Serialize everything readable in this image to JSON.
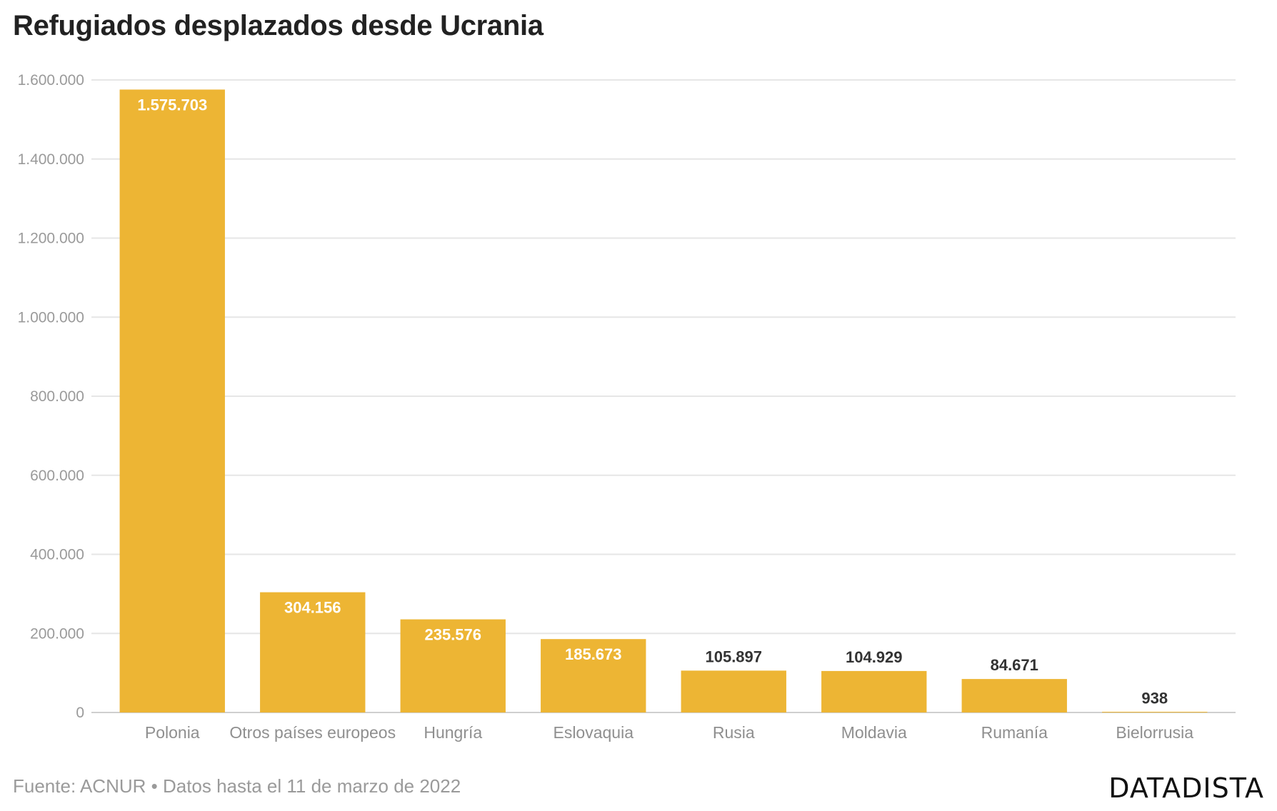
{
  "title": "Refugiados desplazados desde Ucrania",
  "footer": {
    "source": "Fuente: ACNUR • Datos hasta el 11 de marzo de 2022"
  },
  "brand": "DATADISTA",
  "colors": {
    "bar": "#EDB534",
    "grid": "#e6e6e6",
    "axis": "#cfcfcf"
  },
  "chart_data": {
    "type": "bar",
    "title": "Refugiados desplazados desde Ucrania",
    "xlabel": "",
    "ylabel": "",
    "categories": [
      "Polonia",
      "Otros países europeos",
      "Hungría",
      "Eslovaquia",
      "Rusia",
      "Moldavia",
      "Rumanía",
      "Bielorrusia"
    ],
    "values": [
      1575703,
      304156,
      235576,
      185673,
      105897,
      104929,
      84671,
      938
    ],
    "value_labels": [
      "1.575.703",
      "304.156",
      "235.576",
      "185.673",
      "105.897",
      "104.929",
      "84.671",
      "938"
    ],
    "ylim": [
      0,
      1600000
    ],
    "yticks": [
      0,
      200000,
      400000,
      600000,
      800000,
      1000000,
      1200000,
      1400000,
      1600000
    ],
    "ytick_labels": [
      "0",
      "200.000",
      "400.000",
      "600.000",
      "800.000",
      "1.000.000",
      "1.200.000",
      "1.400.000",
      "1.600.000"
    ],
    "grid": true,
    "legend": "none"
  }
}
